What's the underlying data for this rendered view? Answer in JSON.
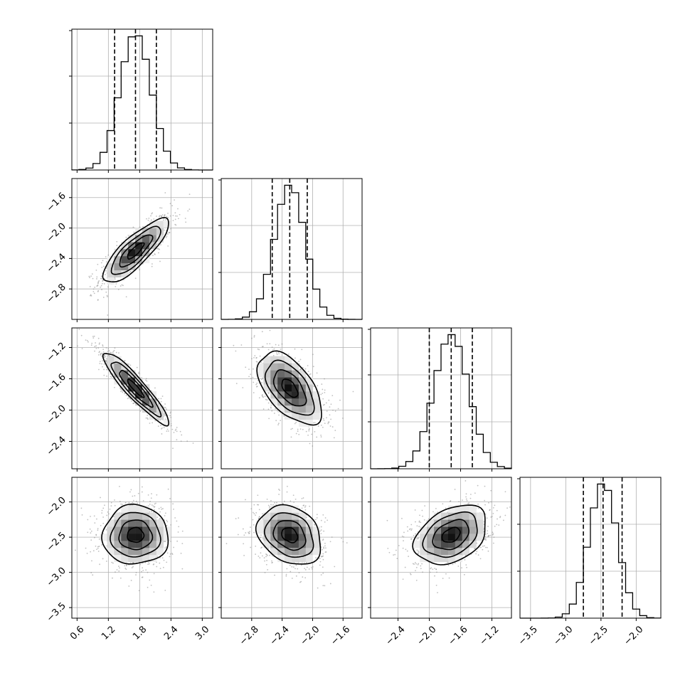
{
  "chart_data": {
    "type": "corner",
    "parameters": [
      {
        "range": [
          0.5,
          3.2
        ],
        "mean": 1.72,
        "sd": 0.3,
        "quantiles": [
          1.32,
          1.72,
          2.12
        ],
        "ticks": [
          0.6,
          1.2,
          1.8,
          2.4,
          3.0
        ],
        "tick_labels": [
          "0.6",
          "1.2",
          "1.8",
          "2.4",
          "3.0"
        ]
      },
      {
        "range": [
          -3.2,
          -1.35
        ],
        "mean": -2.3,
        "sd": 0.2,
        "quantiles": [
          -2.53,
          -2.3,
          -2.07
        ],
        "ticks": [
          -2.8,
          -2.4,
          -2.0,
          -1.6
        ],
        "tick_labels": [
          "−2.8",
          "−2.4",
          "−2.0",
          "−1.6"
        ]
      },
      {
        "range": [
          -2.75,
          -0.95
        ],
        "mean": -1.72,
        "sd": 0.22,
        "quantiles": [
          -2.0,
          -1.72,
          -1.45
        ],
        "ticks": [
          -2.4,
          -2.0,
          -1.6,
          -1.2
        ],
        "tick_labels": [
          "−2.4",
          "−2.0",
          "−1.6",
          "−1.2"
        ]
      },
      {
        "range": [
          -3.65,
          -1.65
        ],
        "mean": -2.47,
        "sd": 0.2,
        "quantiles": [
          -2.75,
          -2.47,
          -2.2
        ],
        "ticks": [
          -3.5,
          -3.0,
          -2.5,
          -2.0
        ],
        "tick_labels": [
          "−3.5",
          "−3.0",
          "−2.5",
          "−2.0"
        ]
      }
    ],
    "correlations": [
      [
        1.0,
        0.82,
        -0.92,
        0.0
      ],
      [
        0.82,
        1.0,
        -0.55,
        -0.25
      ],
      [
        -0.92,
        -0.55,
        1.0,
        0.35
      ],
      [
        0.0,
        -0.25,
        0.35,
        1.0
      ]
    ],
    "histogram_bins": 20,
    "contour_levels_sigma": [
      0.5,
      1.0,
      1.5,
      2.0
    ],
    "grid": true,
    "histogram_y_tick_labels": "none",
    "title": "",
    "legend": "none"
  }
}
